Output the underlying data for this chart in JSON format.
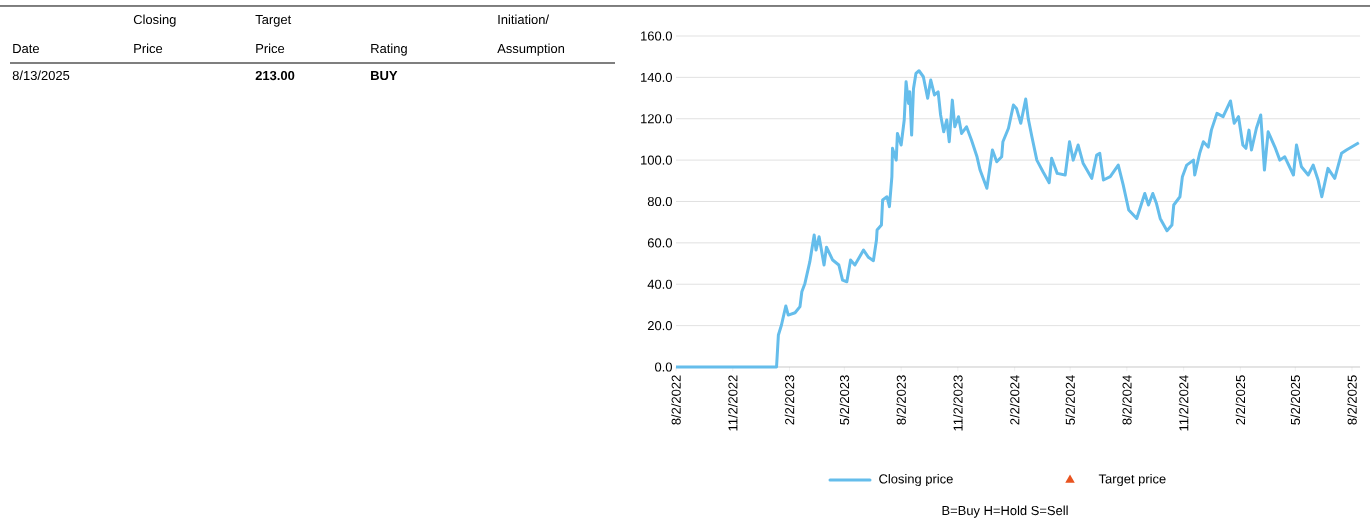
{
  "chart_data": [
    {
      "type": "other",
      "annotations": [
        "Closing",
        "Target",
        "Initiation/",
        "Date",
        "Price",
        "Price",
        "Rating",
        "Assumption",
        "8/13/2025",
        "213.00",
        "BUY"
      ]
    },
    {
      "type": "line",
      "xlim": [
        "2022-08-02",
        "2025-08-15"
      ],
      "ylim": [
        0,
        160
      ],
      "xticks": [
        {
          "value": "2022-08-02",
          "label": "8/2/2022"
        },
        {
          "value": "2022-11-02",
          "label": "11/2/2022"
        },
        {
          "value": "2023-02-02",
          "label": "2/2/2023"
        },
        {
          "value": "2023-05-02",
          "label": "5/2/2023"
        },
        {
          "value": "2023-08-02",
          "label": "8/2/2023"
        },
        {
          "value": "2023-11-02",
          "label": "11/2/2023"
        },
        {
          "value": "2024-02-02",
          "label": "2/2/2024"
        },
        {
          "value": "2024-05-02",
          "label": "5/2/2024"
        },
        {
          "value": "2024-08-02",
          "label": "8/2/2024"
        },
        {
          "value": "2024-11-02",
          "label": "11/2/2024"
        },
        {
          "value": "2025-02-02",
          "label": "2/2/2025"
        },
        {
          "value": "2025-05-02",
          "label": "5/2/2025"
        },
        {
          "value": "2025-08-02",
          "label": "8/2/2025"
        }
      ],
      "yticks": [
        {
          "value": 0,
          "label": "0.0"
        },
        {
          "value": 20,
          "label": "20.0"
        },
        {
          "value": 40,
          "label": "40.0"
        },
        {
          "value": 60,
          "label": "60.0"
        },
        {
          "value": 80,
          "label": "80.0"
        },
        {
          "value": 100,
          "label": "100.0"
        },
        {
          "value": 120,
          "label": "120.0"
        },
        {
          "value": 140,
          "label": "140.0"
        },
        {
          "value": 160,
          "label": "160.0"
        }
      ],
      "grid": "y",
      "legend": "bottom",
      "series": [
        {
          "name": "Closing price",
          "type": "line",
          "color": "#65bdeb",
          "marker": "none",
          "x": [
            "2022-08-02",
            "2023-01-12",
            "2023-01-15",
            "2023-01-20",
            "2023-01-27",
            "2023-01-31",
            "2023-02-11",
            "2023-02-19",
            "2023-02-22",
            "2023-02-27",
            "2023-03-07",
            "2023-03-14",
            "2023-03-17",
            "2023-03-22",
            "2023-03-30",
            "2023-04-03",
            "2023-04-13",
            "2023-04-23",
            "2023-04-29",
            "2023-05-06",
            "2023-05-12",
            "2023-05-19",
            "2023-06-02",
            "2023-06-10",
            "2023-06-18",
            "2023-06-23",
            "2023-06-24",
            "2023-07-01",
            "2023-07-03",
            "2023-07-10",
            "2023-07-14",
            "2023-07-18",
            "2023-07-19",
            "2023-07-25",
            "2023-07-27",
            "2023-08-02",
            "2023-08-07",
            "2023-08-10",
            "2023-08-14",
            "2023-08-16",
            "2023-08-19",
            "2023-08-22",
            "2023-08-26",
            "2023-08-31",
            "2023-09-07",
            "2023-09-14",
            "2023-09-19",
            "2023-09-25",
            "2023-10-01",
            "2023-10-05",
            "2023-10-10",
            "2023-10-15",
            "2023-10-19",
            "2023-10-24",
            "2023-10-28",
            "2023-11-03",
            "2023-11-08",
            "2023-11-16",
            "2023-11-24",
            "2023-12-03",
            "2023-12-08",
            "2023-12-19",
            "2023-12-28",
            "2024-01-04",
            "2024-01-12",
            "2024-01-14",
            "2024-01-23",
            "2024-01-31",
            "2024-02-05",
            "2024-02-12",
            "2024-02-20",
            "2024-02-24",
            "2024-03-01",
            "2024-03-09",
            "2024-03-19",
            "2024-03-29",
            "2024-04-02",
            "2024-04-11",
            "2024-04-24",
            "2024-05-01",
            "2024-05-07",
            "2024-05-15",
            "2024-05-23",
            "2024-06-06",
            "2024-06-14",
            "2024-06-19",
            "2024-06-25",
            "2024-07-06",
            "2024-07-19",
            "2024-07-27",
            "2024-08-05",
            "2024-08-18",
            "2024-08-31",
            "2024-09-06",
            "2024-09-13",
            "2024-09-19",
            "2024-09-25",
            "2024-10-06",
            "2024-10-14",
            "2024-10-17",
            "2024-10-27",
            "2024-10-31",
            "2024-11-07",
            "2024-11-18",
            "2024-11-20",
            "2024-11-28",
            "2024-12-04",
            "2024-12-12",
            "2024-12-17",
            "2024-12-26",
            "2025-01-05",
            "2025-01-17",
            "2025-01-23",
            "2025-01-30",
            "2025-02-06",
            "2025-02-11",
            "2025-02-16",
            "2025-02-20",
            "2025-02-28",
            "2025-03-07",
            "2025-03-13",
            "2025-03-19",
            "2025-03-30",
            "2025-04-07",
            "2025-04-15",
            "2025-04-29",
            "2025-05-04",
            "2025-05-12",
            "2025-05-23",
            "2025-05-31",
            "2025-06-08",
            "2025-06-14",
            "2025-06-24",
            "2025-07-05",
            "2025-07-16",
            "2025-07-24",
            "2025-08-13"
          ],
          "values": [
            0,
            0,
            15.5,
            20.3,
            29.5,
            25.1,
            26.2,
            29.2,
            36.4,
            40.4,
            50.9,
            63.8,
            56.5,
            63,
            49.3,
            57.9,
            51.7,
            49.3,
            42,
            41.2,
            51.7,
            49.3,
            56.5,
            53,
            51.4,
            61.4,
            66.2,
            68.6,
            80.7,
            82.3,
            77.5,
            92,
            105.7,
            100,
            112.9,
            107.3,
            119.4,
            137.9,
            127.4,
            133,
            112.1,
            134.5,
            141.9,
            143.2,
            140.3,
            129.9,
            138.7,
            131.5,
            133,
            121.8,
            113.7,
            119.4,
            108.9,
            129,
            116.1,
            121,
            112.9,
            116.1,
            109.7,
            101.6,
            95.2,
            86.4,
            104.9,
            99.2,
            101.6,
            108.9,
            115.4,
            126.6,
            125,
            117.8,
            129.5,
            120.2,
            111.3,
            100,
            94.4,
            89.1,
            100.9,
            93.6,
            92.8,
            108.9,
            100,
            107.3,
            98.5,
            91.2,
            102.5,
            103.3,
            90.4,
            92,
            97.6,
            88,
            75.9,
            71.8,
            83.9,
            78.3,
            83.9,
            79,
            71.8,
            65.9,
            68.6,
            78.3,
            82.3,
            92,
            97.6,
            100,
            92.8,
            103.3,
            108.9,
            106.3,
            114.5,
            122.6,
            121,
            128.6,
            117.8,
            121,
            107.3,
            105.7,
            114.5,
            104.9,
            115.4,
            121.8,
            95.2,
            113.7,
            106.3,
            100,
            101.6,
            92.8,
            107.3,
            96.8,
            92.8,
            97.6,
            90.4,
            82.3,
            96,
            91.2,
            103.3,
            104.9,
            108.4
          ]
        },
        {
          "name": "Target price",
          "type": "scatter",
          "color": "#e8531f",
          "marker": "triangle"
        }
      ],
      "annotations": [
        "B=Buy H=Hold S=Sell"
      ]
    }
  ]
}
